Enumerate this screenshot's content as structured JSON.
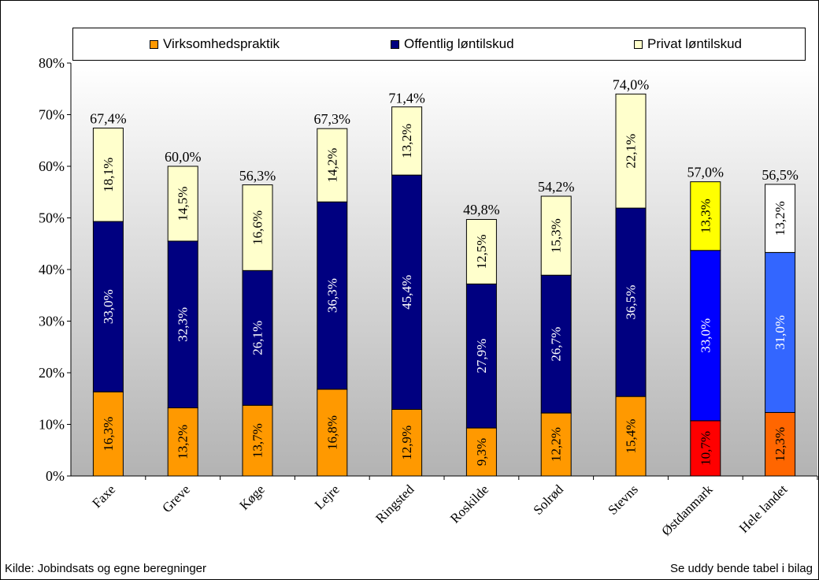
{
  "footer": {
    "source": "Kilde: Jobindsats og egne beregninger",
    "note": "Se uddy bende tabel i bilag"
  },
  "chart_data": {
    "type": "bar",
    "stacked": true,
    "categories": [
      "Faxe",
      "Greve",
      "Køge",
      "Lejre",
      "Ringsted",
      "Roskilde",
      "Solrød",
      "Stevns",
      "Østdanmark",
      "Hele landet"
    ],
    "series": [
      {
        "name": "Virksomhedspraktik",
        "values": [
          16.3,
          13.2,
          13.7,
          16.8,
          12.9,
          9.3,
          12.2,
          15.4,
          10.7,
          12.3
        ],
        "labels": [
          "16,3%",
          "13,2%",
          "13,7%",
          "16,8%",
          "12,9%",
          "9,3%",
          "12,2%",
          "15,4%",
          "10,7%",
          "12,3%"
        ],
        "color": "#ff9900",
        "colors_override": {
          "8": "#ff0000",
          "9": "#ff6600"
        }
      },
      {
        "name": "Offentlig løntilskud",
        "values": [
          33.0,
          32.3,
          26.1,
          36.3,
          45.4,
          27.9,
          26.7,
          36.5,
          33.0,
          31.0
        ],
        "labels": [
          "33,0%",
          "32,3%",
          "26,1%",
          "36,3%",
          "45,4%",
          "27,9%",
          "26,7%",
          "36,5%",
          "33,0%",
          "31,0%"
        ],
        "color": "#000080",
        "colors_override": {
          "8": "#0000ff",
          "9": "#3366ff"
        }
      },
      {
        "name": "Privat løntilskud",
        "values": [
          18.1,
          14.5,
          16.6,
          14.2,
          13.2,
          12.5,
          15.3,
          22.1,
          13.3,
          13.2
        ],
        "labels": [
          "18,1%",
          "14,5%",
          "16,6%",
          "14,2%",
          "13,2%",
          "12,5%",
          "15,3%",
          "22,1%",
          "13,3%",
          "13,2%"
        ],
        "color": "#ffffcc",
        "colors_override": {
          "8": "#ffff00",
          "9": "#ffffff"
        }
      }
    ],
    "totals": [
      67.4,
      60.0,
      56.3,
      67.3,
      71.4,
      49.8,
      54.2,
      74.0,
      57.0,
      56.5
    ],
    "total_labels": [
      "67,4%",
      "60,0%",
      "56,3%",
      "67,3%",
      "71,4%",
      "49,8%",
      "54,2%",
      "74,0%",
      "57,0%",
      "56,5%"
    ],
    "ylim": [
      0,
      80
    ],
    "yticks": [
      0,
      10,
      20,
      30,
      40,
      50,
      60,
      70,
      80
    ],
    "ytick_labels": [
      "0%",
      "10%",
      "20%",
      "30%",
      "40%",
      "50%",
      "60%",
      "70%",
      "80%"
    ],
    "legend_position": "top",
    "grid": false,
    "background_gradient": [
      "#ffffff",
      "#b3b3b3"
    ]
  }
}
